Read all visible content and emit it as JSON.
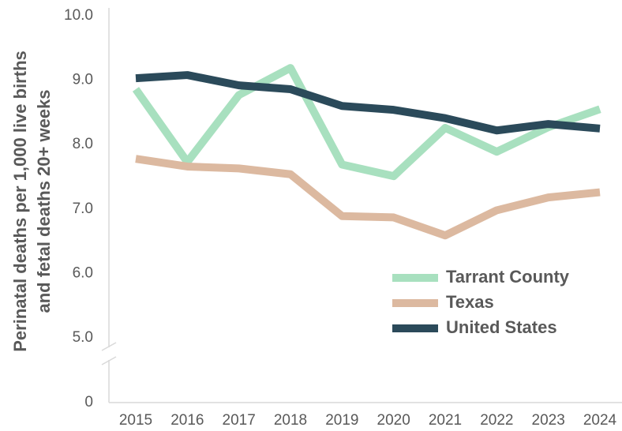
{
  "chart_data": {
    "type": "line",
    "y_label": [
      "Perinatal deaths per 1,000 live births",
      "and fetal deaths 20+ weeks"
    ],
    "categories": [
      "2015",
      "2016",
      "2017",
      "2018",
      "2019",
      "2020",
      "2021",
      "2022",
      "2023",
      "2024"
    ],
    "series": [
      {
        "name": "Tarrant County",
        "color": "#a8e0bf",
        "values": [
          8.86,
          7.73,
          8.77,
          9.19,
          7.69,
          7.51,
          8.26,
          7.89,
          8.27,
          8.55
        ]
      },
      {
        "name": "Texas",
        "color": "#dcb9a0",
        "values": [
          7.78,
          7.66,
          7.63,
          7.54,
          6.89,
          6.87,
          6.59,
          6.98,
          7.18,
          7.26
        ]
      },
      {
        "name": "United States",
        "color": "#2b4a5a",
        "values": [
          9.03,
          9.08,
          8.92,
          8.86,
          8.6,
          8.54,
          8.41,
          8.22,
          8.32,
          8.25
        ]
      }
    ],
    "ylim": [
      0,
      10
    ],
    "axis_break": [
      0,
      5
    ],
    "yticks": [
      {
        "value": 10,
        "label": "10.0"
      },
      {
        "value": 9,
        "label": "9.0"
      },
      {
        "value": 8,
        "label": "8.0"
      },
      {
        "value": 7,
        "label": "7.0"
      },
      {
        "value": 6,
        "label": "6.0"
      },
      {
        "value": 5,
        "label": "5.0"
      },
      0
    ],
    "grid": false,
    "legend": "lower right"
  }
}
